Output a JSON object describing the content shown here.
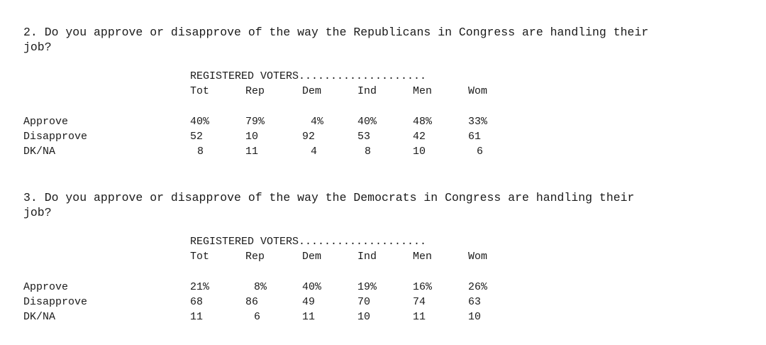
{
  "q2": {
    "text": "2. Do you approve or disapprove of the way the Republicans in Congress are handling their\njob?",
    "banner": "REGISTERED VOTERS....................",
    "columns": [
      "Tot",
      "Rep",
      "Dem",
      "Ind",
      "Men",
      "Wom"
    ],
    "rows": [
      {
        "label": "Approve",
        "values": [
          "40%",
          "79%",
          "4%",
          "40%",
          "48%",
          "33%"
        ]
      },
      {
        "label": "Disapprove",
        "values": [
          "52",
          "10",
          "92",
          "53",
          "42",
          "61"
        ]
      },
      {
        "label": "DK/NA",
        "values": [
          "8",
          "11",
          "4",
          "8",
          "10",
          "6"
        ]
      }
    ]
  },
  "q3": {
    "text": "3. Do you approve or disapprove of the way the Democrats in Congress are handling their\njob?",
    "banner": "REGISTERED VOTERS....................",
    "columns": [
      "Tot",
      "Rep",
      "Dem",
      "Ind",
      "Men",
      "Wom"
    ],
    "rows": [
      {
        "label": "Approve",
        "values": [
          "21%",
          "8%",
          "40%",
          "19%",
          "16%",
          "26%"
        ]
      },
      {
        "label": "Disapprove",
        "values": [
          "68",
          "86",
          "49",
          "70",
          "74",
          "63"
        ]
      },
      {
        "label": "DK/NA",
        "values": [
          "11",
          "6",
          "11",
          "10",
          "11",
          "10"
        ]
      }
    ]
  }
}
